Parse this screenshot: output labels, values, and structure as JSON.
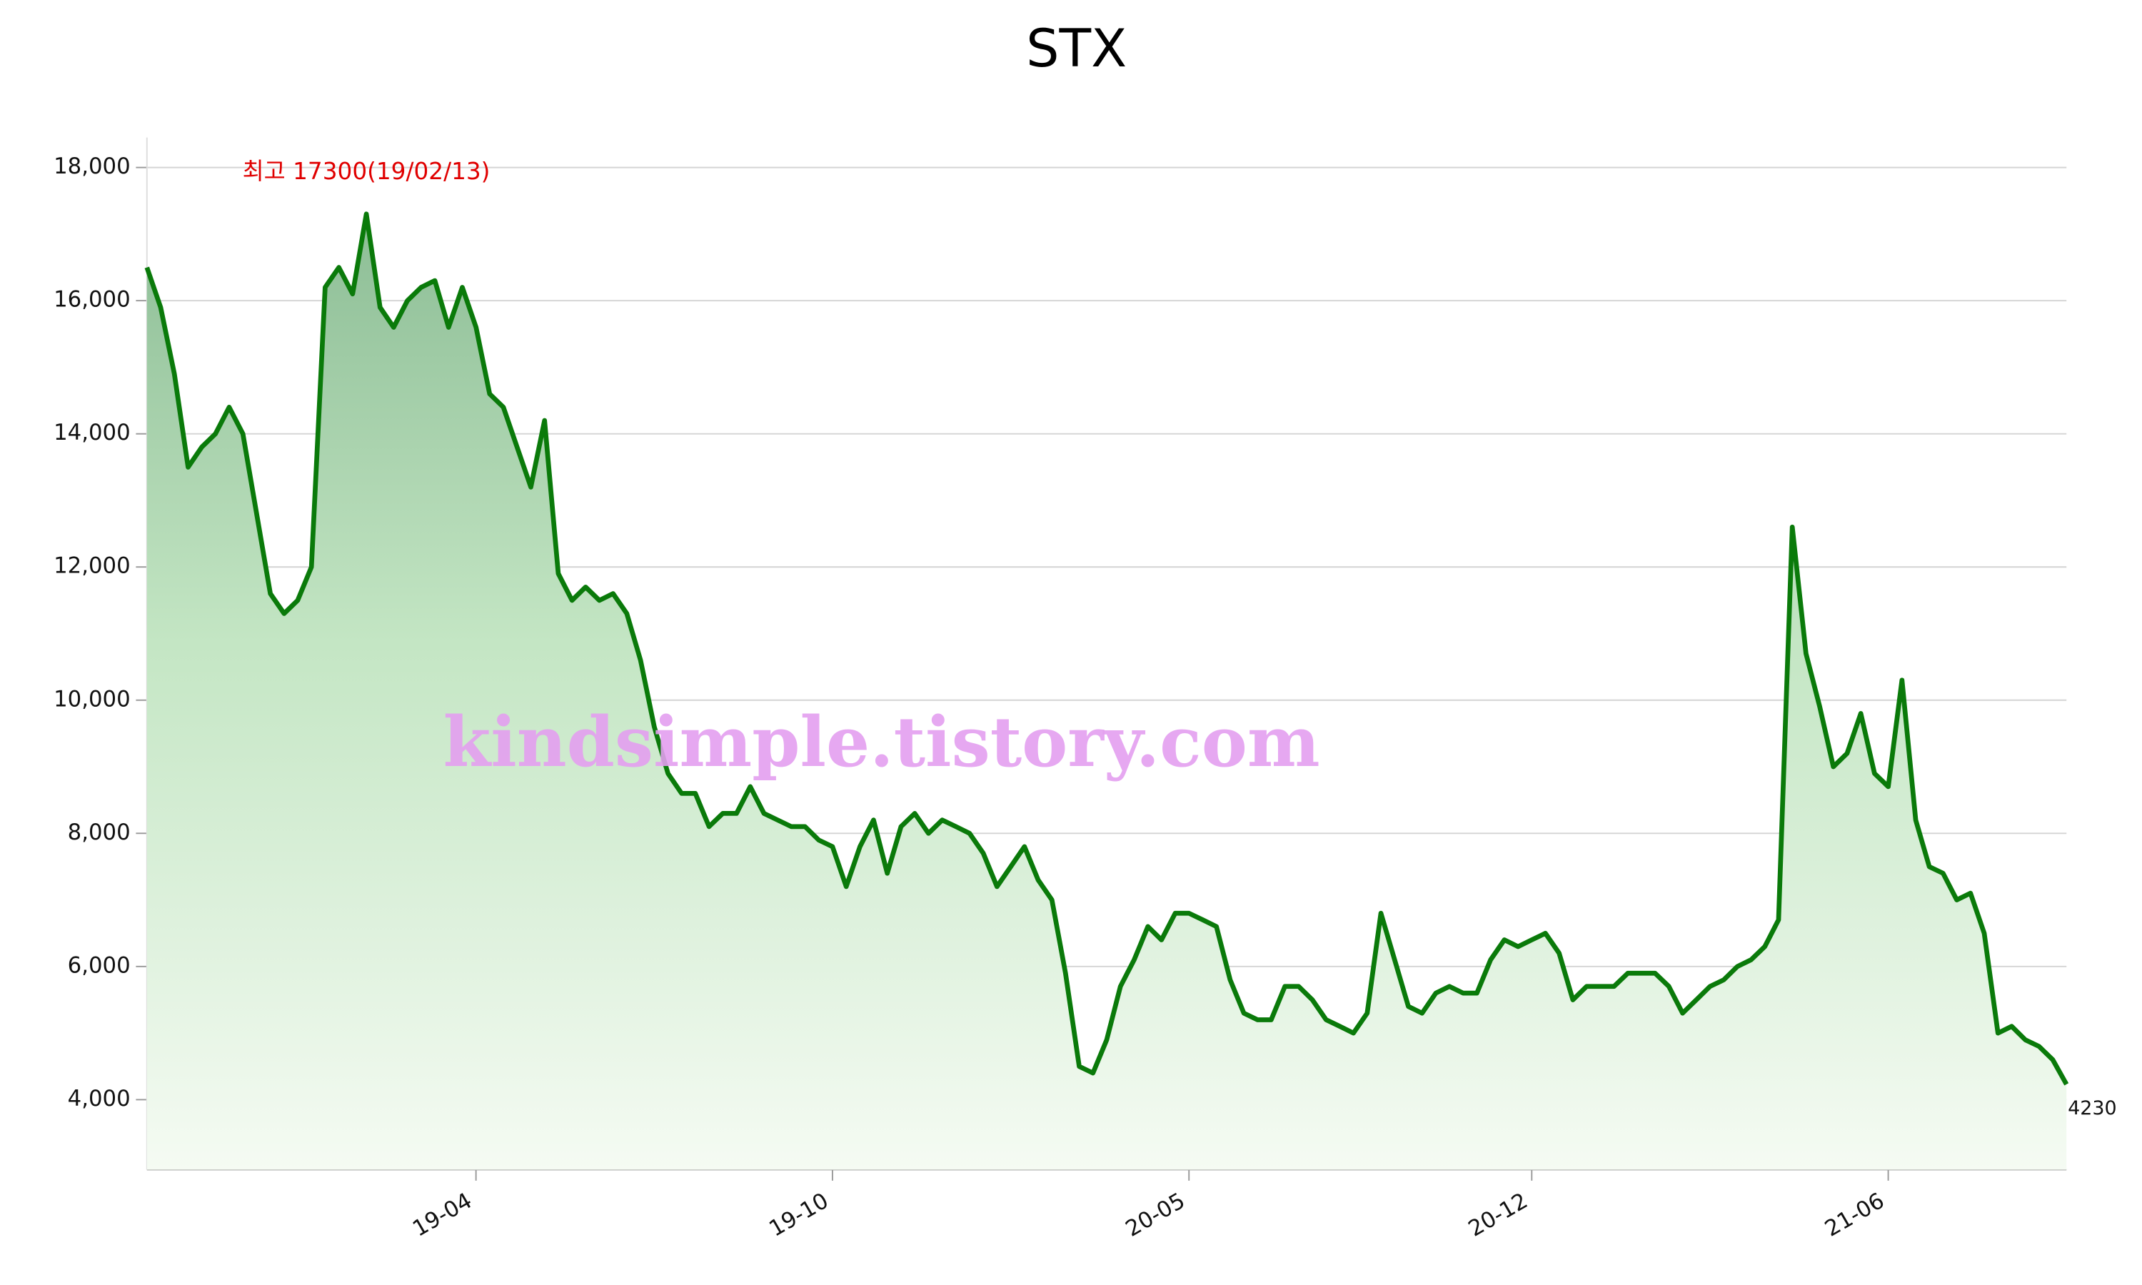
{
  "chart_data": {
    "type": "area-line",
    "title": "STX",
    "annotation": "최고 17300(19/02/13)",
    "watermark": "kindsimple.tistory.com",
    "color": "#0a7a0a",
    "values": [
      16500,
      15900,
      14900,
      13500,
      13800,
      14000,
      14400,
      14000,
      12800,
      11600,
      11300,
      11500,
      12000,
      16200,
      16500,
      16100,
      17300,
      15900,
      15600,
      16000,
      16200,
      16300,
      15600,
      16200,
      15600,
      14600,
      14400,
      13800,
      13200,
      14200,
      11900,
      11500,
      11700,
      11500,
      11600,
      11300,
      10600,
      9600,
      8900,
      8600,
      8600,
      8100,
      8300,
      8300,
      8700,
      8300,
      8200,
      8100,
      8100,
      7900,
      7800,
      7200,
      7800,
      8200,
      7400,
      8100,
      8300,
      8000,
      8200,
      8100,
      8000,
      7700,
      7200,
      7500,
      7800,
      7300,
      7000,
      5900,
      4500,
      4400,
      4900,
      5700,
      6100,
      6600,
      6400,
      6800,
      6800,
      6700,
      6600,
      5800,
      5300,
      5200,
      5200,
      5700,
      5700,
      5500,
      5200,
      5100,
      5000,
      5300,
      6800,
      6100,
      5400,
      5300,
      5600,
      5700,
      5600,
      5600,
      6100,
      6400,
      6300,
      6400,
      6500,
      6200,
      5500,
      5700,
      5700,
      5700,
      5900,
      5900,
      5900,
      5700,
      5300,
      5500,
      5700,
      5800,
      6000,
      6100,
      6300,
      6700,
      12600,
      10700,
      9900,
      9000,
      9200,
      9800,
      8900,
      8700,
      10300,
      8200,
      7500,
      7400,
      7000,
      7100,
      6500,
      5000,
      5100,
      4900,
      4800,
      4600,
      4230
    ],
    "xlim": [
      0,
      140
    ],
    "xticks": [
      {
        "value": 24,
        "label": "19-04"
      },
      {
        "value": 50,
        "label": "19-10"
      },
      {
        "value": 76,
        "label": "20-05"
      },
      {
        "value": 101,
        "label": "20-12"
      },
      {
        "value": 127,
        "label": "21-06"
      }
    ],
    "ylim": [
      2950,
      18450
    ],
    "yticks": [
      {
        "value": 4000,
        "label": "4,000"
      },
      {
        "value": 6000,
        "label": "6,000"
      },
      {
        "value": 8000,
        "label": "8,000"
      },
      {
        "value": 10000,
        "label": "10,000"
      },
      {
        "value": 12000,
        "label": "12,000"
      },
      {
        "value": 14000,
        "label": "14,000"
      },
      {
        "value": 16000,
        "label": "16,000"
      },
      {
        "value": 18000,
        "label": "18,000"
      }
    ],
    "grid": true
  }
}
